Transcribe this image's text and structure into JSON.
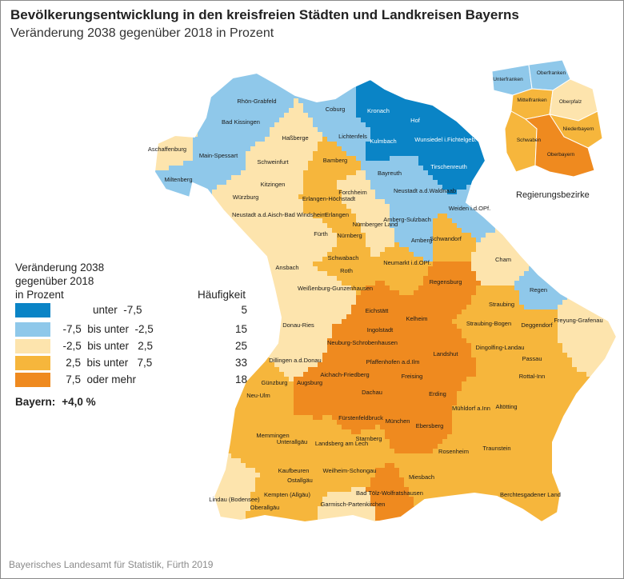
{
  "title": "Bevölkerungsentwicklung in den kreisfreien Städten und Landkreisen Bayerns",
  "subtitle": "Veränderung 2038 gegenüber 2018 in Prozent",
  "legend": {
    "title_lines": [
      "Veränderung 2038",
      "gegenüber 2018",
      "in Prozent"
    ],
    "frequency_header": "Häufigkeit",
    "classes": [
      {
        "label": "            unter  -7,5",
        "count": "5",
        "color": "#0a84c6"
      },
      {
        "label": "  -7,5  bis unter  -2,5",
        "count": "15",
        "color": "#8fc8ea"
      },
      {
        "label": "  -2,5  bis unter   2,5",
        "count": "25",
        "color": "#fde4ad"
      },
      {
        "label": "   2,5  bis unter   7,5",
        "count": "33",
        "color": "#f6b63c"
      },
      {
        "label": "   7,5  oder mehr",
        "count": "18",
        "color": "#ef8a1f"
      }
    ]
  },
  "total": {
    "label": "Bayern:",
    "value": "+4,0 %"
  },
  "source": "Bayerisches Landesamt für Statistik, Fürth 2019",
  "inset": {
    "caption": "Regierungsbezirke",
    "regions": [
      {
        "name": "Unterfranken",
        "class": 1
      },
      {
        "name": "Oberfranken",
        "class": 1
      },
      {
        "name": "Mittelfranken",
        "class": 3
      },
      {
        "name": "Oberpfalz",
        "class": 2
      },
      {
        "name": "Niederbayern",
        "class": 3
      },
      {
        "name": "Schwaben",
        "class": 3
      },
      {
        "name": "Oberbayern",
        "class": 4
      }
    ]
  },
  "districts": [
    {
      "name": "Rhön-Grabfeld",
      "class": 1
    },
    {
      "name": "Bad Kissingen",
      "class": 1
    },
    {
      "name": "Aschaffenburg",
      "class": 2
    },
    {
      "name": "Main-Spessart",
      "class": 1
    },
    {
      "name": "Miltenberg",
      "class": 1
    },
    {
      "name": "Haßberge",
      "class": 2
    },
    {
      "name": "Schweinfurt",
      "class": 2
    },
    {
      "name": "Kitzingen",
      "class": 2
    },
    {
      "name": "Würzburg",
      "class": 2
    },
    {
      "name": "Coburg",
      "class": 1
    },
    {
      "name": "Kronach",
      "class": 0
    },
    {
      "name": "Hof",
      "class": 0
    },
    {
      "name": "Lichtenfels",
      "class": 1
    },
    {
      "name": "Kulmbach",
      "class": 0
    },
    {
      "name": "Wunsiedel i.Fichtelgeb.",
      "class": 0
    },
    {
      "name": "Tirschenreuth",
      "class": 0
    },
    {
      "name": "Bamberg",
      "class": 3
    },
    {
      "name": "Bayreuth",
      "class": 1
    },
    {
      "name": "Forchheim",
      "class": 2
    },
    {
      "name": "Erlangen-Höchstadt",
      "class": 3
    },
    {
      "name": "Erlangen",
      "class": 3
    },
    {
      "name": "Neustadt a.d.Waldnaab",
      "class": 1
    },
    {
      "name": "Weiden i.d.OPf.",
      "class": 1
    },
    {
      "name": "Amberg-Sulzbach",
      "class": 1
    },
    {
      "name": "Amberg",
      "class": 1
    },
    {
      "name": "Neustadt a.d.Aisch-Bad Windsheim",
      "class": 2
    },
    {
      "name": "Fürth",
      "class": 2
    },
    {
      "name": "Nürnberger Land",
      "class": 2
    },
    {
      "name": "Nürnberg",
      "class": 3
    },
    {
      "name": "Schwandorf",
      "class": 3
    },
    {
      "name": "Ansbach",
      "class": 2
    },
    {
      "name": "Schwabach",
      "class": 3
    },
    {
      "name": "Roth",
      "class": 3
    },
    {
      "name": "Neumarkt i.d.OPf.",
      "class": 3
    },
    {
      "name": "Cham",
      "class": 2
    },
    {
      "name": "Regen",
      "class": 1
    },
    {
      "name": "Weißenburg-Gunzenhausen",
      "class": 2
    },
    {
      "name": "Regensburg",
      "class": 4
    },
    {
      "name": "Straubing",
      "class": 3
    },
    {
      "name": "Eichstätt",
      "class": 4
    },
    {
      "name": "Donau-Ries",
      "class": 2
    },
    {
      "name": "Ingolstadt",
      "class": 4
    },
    {
      "name": "Kelheim",
      "class": 4
    },
    {
      "name": "Straubing-Bogen",
      "class": 3
    },
    {
      "name": "Deggendorf",
      "class": 3
    },
    {
      "name": "Freyung-Grafenau",
      "class": 2
    },
    {
      "name": "Neuburg-Schrobenhausen",
      "class": 4
    },
    {
      "name": "Pfaffenhofen a.d.Ilm",
      "class": 4
    },
    {
      "name": "Dingolfing-Landau",
      "class": 3
    },
    {
      "name": "Landshut",
      "class": 4
    },
    {
      "name": "Passau",
      "class": 3
    },
    {
      "name": "Dillingen a.d.Donau",
      "class": 2
    },
    {
      "name": "Aichach-Friedberg",
      "class": 4
    },
    {
      "name": "Freising",
      "class": 4
    },
    {
      "name": "Rottal-Inn",
      "class": 3
    },
    {
      "name": "Günzburg",
      "class": 3
    },
    {
      "name": "Augsburg",
      "class": 4
    },
    {
      "name": "Dachau",
      "class": 4
    },
    {
      "name": "Erding",
      "class": 4
    },
    {
      "name": "Neu-Ulm",
      "class": 3
    },
    {
      "name": "Mühldorf a.Inn",
      "class": 3
    },
    {
      "name": "Altötting",
      "class": 3
    },
    {
      "name": "Fürstenfeldbruck",
      "class": 4
    },
    {
      "name": "München",
      "class": 4
    },
    {
      "name": "Ebersberg",
      "class": 4
    },
    {
      "name": "Memmingen",
      "class": 3
    },
    {
      "name": "Unterallgäu",
      "class": 3
    },
    {
      "name": "Landsberg am Lech",
      "class": 3
    },
    {
      "name": "Starnberg",
      "class": 3
    },
    {
      "name": "Traunstein",
      "class": 3
    },
    {
      "name": "Rosenheim",
      "class": 3
    },
    {
      "name": "Kaufbeuren",
      "class": 3
    },
    {
      "name": "Weilheim-Schongau",
      "class": 3
    },
    {
      "name": "Ostallgäu",
      "class": 3
    },
    {
      "name": "Miesbach",
      "class": 3
    },
    {
      "name": "Kempten (Allgäu)",
      "class": 3
    },
    {
      "name": "Bad Tölz-Wolfratshausen",
      "class": 4
    },
    {
      "name": "Lindau (Bodensee)",
      "class": 2
    },
    {
      "name": "Oberallgäu",
      "class": 3
    },
    {
      "name": "Garmisch-Partenkirchen",
      "class": 2
    },
    {
      "name": "Berchtesgadener Land",
      "class": 3
    }
  ]
}
